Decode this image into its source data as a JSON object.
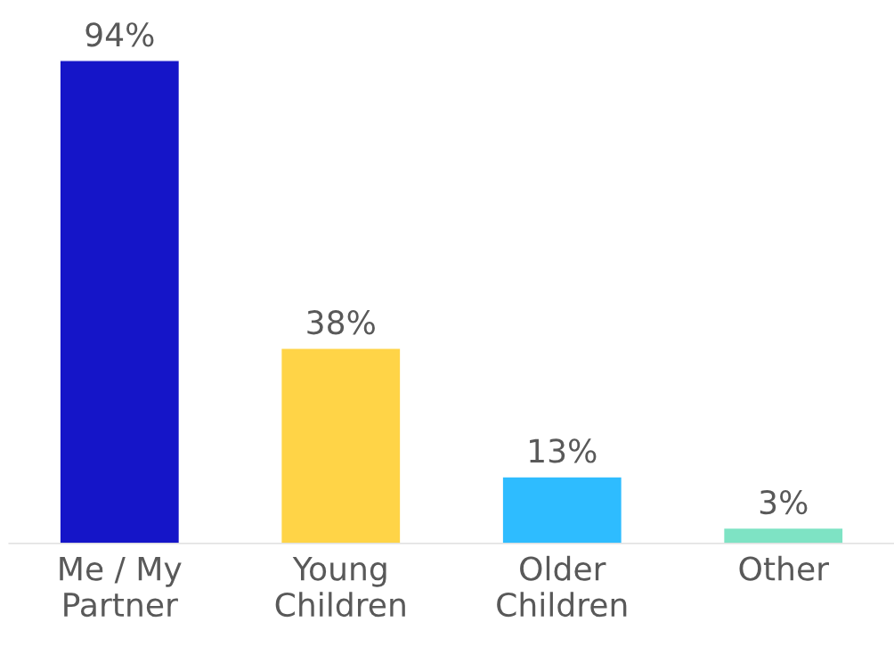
{
  "chart_data": {
    "type": "bar",
    "categories": [
      "Me / My\nPartner",
      "Young\nChildren",
      "Older\nChildren",
      "Other"
    ],
    "values": [
      94,
      38,
      13,
      3
    ],
    "colors": [
      "#1515c8",
      "#ffd447",
      "#2ebcff",
      "#7ee3c4"
    ],
    "value_labels": [
      "94%",
      "38%",
      "13%",
      "3%"
    ],
    "grid": false,
    "legend": false
  }
}
